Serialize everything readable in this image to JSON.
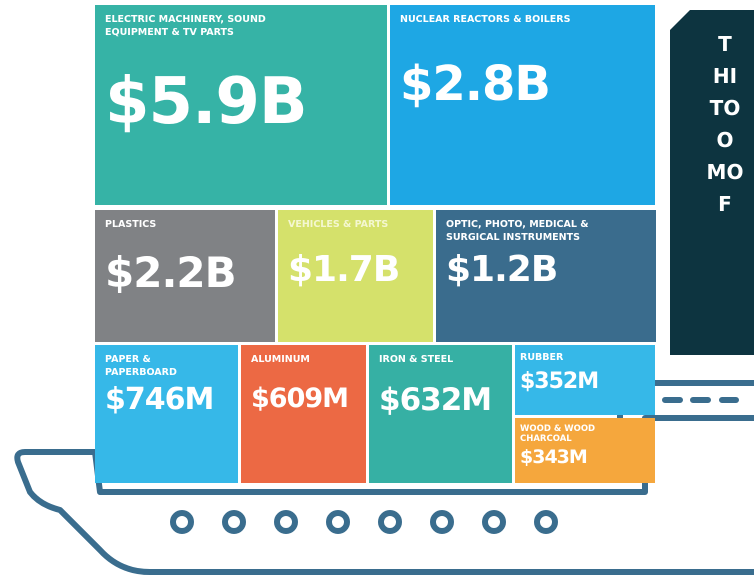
{
  "chart_data": {
    "type": "treemap",
    "categories": [
      "ELECTRIC MACHINERY, SOUND EQUIPMENT & TV PARTS",
      "NUCLEAR REACTORS & BOILERS",
      "PLASTICS",
      "VEHICLES & PARTS",
      "OPTIC, PHOTO, MEDICAL & SURGICAL INSTRUMENTS",
      "PAPER & PAPERBOARD",
      "ALUMINUM",
      "IRON & STEEL",
      "RUBBER",
      "WOOD & WOOD CHARCOAL"
    ],
    "values": [
      5900,
      2800,
      2200,
      1700,
      1200,
      746,
      609,
      632,
      352,
      343
    ],
    "value_labels": [
      "$5.9B",
      "$2.8B",
      "$2.2B",
      "$1.7B",
      "$1.2B",
      "$746M",
      "$609M",
      "$632M",
      "$352M",
      "$343M"
    ],
    "colors": [
      "#36b3a6",
      "#1ea7e4",
      "#808285",
      "#d5e16b",
      "#3a6c8d",
      "#36b8e8",
      "#ec6944",
      "#36b0a4",
      "#36b8e8",
      "#f5a73d"
    ],
    "side_text": [
      "T",
      "HI",
      "TO",
      "O",
      "MO",
      "F"
    ]
  }
}
